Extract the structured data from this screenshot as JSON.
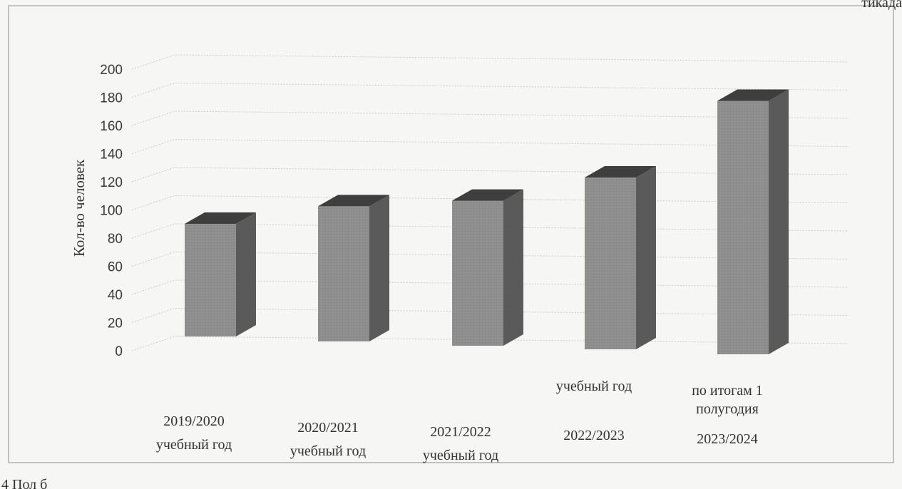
{
  "chart_data": {
    "type": "bar",
    "categories": [
      [
        "2019/2020",
        "учебный год"
      ],
      [
        "2020/2021",
        "учебный год"
      ],
      [
        "2021/2022",
        "учебный год"
      ],
      [
        "учебный год",
        "2022/2023"
      ],
      [
        "по итогам 1",
        "полугодия",
        "2023/2024"
      ]
    ],
    "values": [
      80,
      96,
      103,
      122,
      180
    ],
    "ylabel": "Кол-во человек",
    "ylim": [
      0,
      200
    ],
    "yticks": [
      0,
      20,
      40,
      60,
      80,
      100,
      120,
      140,
      160,
      180,
      200
    ],
    "grid": true,
    "style": "3d-column",
    "colors": {
      "front": "#8e8e8e",
      "side": "#5a5a5a",
      "top": "#3e3e3e",
      "grid": "#c9c9c9"
    }
  },
  "page_fragments": {
    "top_right_text": "тикада",
    "bottom_left_text": "4  Пол    б"
  }
}
